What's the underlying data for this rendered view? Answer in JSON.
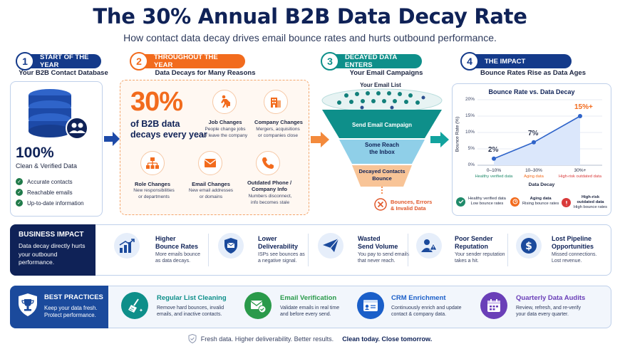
{
  "header": {
    "title": "The 30% Annual B2B Data Decay Rate",
    "subtitle": "How contact data decay drives email bounce rates and hurts outbound performance."
  },
  "steps": [
    {
      "num": "1",
      "label": "START OF THE YEAR",
      "sub": "Your B2B Contact Database",
      "color": "#143a8a"
    },
    {
      "num": "2",
      "label": "THROUGHOUT THE YEAR",
      "sub": "Data Decays for Many Reasons",
      "color": "#f26b1d"
    },
    {
      "num": "3",
      "label": "DECAYED DATA ENTERS",
      "sub": "Your Email Campaigns",
      "color": "#0e8f8a"
    },
    {
      "num": "4",
      "label": "THE IMPACT",
      "sub": "Bounce Rates Rise as Data Ages",
      "color": "#143a8a"
    }
  ],
  "database": {
    "big": "100%",
    "caption": "Clean & Verified Data",
    "checks": [
      "Accurate contacts",
      "Reachable emails",
      "Up-to-date information"
    ]
  },
  "decay": {
    "pct": "30%",
    "text1": "of B2B data",
    "text2": "decays every year",
    "reasons": [
      {
        "title": "Job Changes",
        "desc1": "People change jobs",
        "desc2": "or leave the company",
        "icon": "person-walking-icon"
      },
      {
        "title": "Company Changes",
        "desc1": "Mergers, acquisitions",
        "desc2": "or companies close",
        "icon": "building-icon"
      },
      {
        "title": "Role Changes",
        "desc1": "New responsibilities",
        "desc2": "or departments",
        "icon": "org-chart-icon"
      },
      {
        "title": "Email Changes",
        "desc1": "New email addresses",
        "desc2": "or domains",
        "icon": "envelope-icon"
      },
      {
        "title": "Outdated Phone /",
        "title2": "Company Info",
        "desc1": "Numbers disconnect,",
        "desc2": "info becomes stale",
        "icon": "phone-icon"
      }
    ]
  },
  "funnel": {
    "list_label": "Your Email List",
    "stage1": "Send Email Campaign",
    "stage2a": "Some Reach",
    "stage2b": "the Inbox",
    "stage3a": "Decayed Contacts",
    "stage3b": "Bounce",
    "bounce1": "Bounces, Errors",
    "bounce2": "& Invalid Data"
  },
  "chart_data": {
    "type": "line",
    "title": "Bounce Rate vs. Data Decay",
    "xlabel": "Data Decay",
    "ylabel": "Bounce Rate (%)",
    "ylim": [
      0,
      20
    ],
    "yticks": [
      "0%",
      "5%",
      "10%",
      "15%",
      "20%"
    ],
    "categories": [
      "0–10%",
      "10–30%",
      "30%+"
    ],
    "category_subs": [
      "Healthy verified data",
      "Aging data",
      "High-risk outdated data"
    ],
    "values": [
      2,
      7,
      15
    ],
    "data_labels": [
      "2%",
      "7%",
      "15%+"
    ],
    "grid": true,
    "legend": [
      {
        "line1": "Healthy verified data",
        "line2": "Low bounce rates",
        "color": "#1f8a6a"
      },
      {
        "line1": "Aging data",
        "line2": "Rising bounce rates",
        "color": "#f26b1d"
      },
      {
        "line1": "High-risk",
        "line2": "outdated data",
        "line3": "High bounce rates",
        "color": "#d93a3a"
      }
    ]
  },
  "business_impact": {
    "head": "BUSINESS IMPACT",
    "desc": "Data decay directly hurts your outbound performance.",
    "items": [
      {
        "t1": "Higher",
        "t2": "Bounce Rates",
        "d1": "More emails bounce",
        "d2": "as data decays.",
        "icon": "bar-chart-icon"
      },
      {
        "t1": "Lower",
        "t2": "Deliverability",
        "d1": "ISPs see bounces as",
        "d2": "a negative signal.",
        "icon": "shield-envelope-icon"
      },
      {
        "t1": "Wasted",
        "t2": "Send Volume",
        "d1": "You pay to send emails",
        "d2": "that never reach.",
        "icon": "paper-plane-icon"
      },
      {
        "t1": "Poor Sender",
        "t2": "Reputation",
        "d1": "Your sender reputation",
        "d2": "takes a hit.",
        "icon": "warning-user-icon"
      },
      {
        "t1": "Lost Pipeline",
        "t2": "Opportunities",
        "d1": "Missed connections.",
        "d2": "Lost revenue.",
        "icon": "dollar-icon"
      }
    ]
  },
  "best_practices": {
    "head": "BEST PRACTICES",
    "desc1": "Keep your data fresh.",
    "desc2": "Protect performance.",
    "items": [
      {
        "title": "Regular List Cleaning",
        "d1": "Remove hard bounces, invalid",
        "d2": "emails, and inactive contacts.",
        "color": "#0e8f8a",
        "icon": "broom-icon"
      },
      {
        "title": "Email Verification",
        "d1": "Validate emails in real time",
        "d2": "and before every send.",
        "color": "#2a9a4a",
        "icon": "email-check-icon"
      },
      {
        "title": "CRM Enrichment",
        "d1": "Continuously enrich and update",
        "d2": "contact & company data.",
        "color": "#1b5fc9",
        "icon": "crm-card-icon"
      },
      {
        "title": "Quarterly Data Audits",
        "d1": "Review, refresh, and re-verify",
        "d2": "your data every quarter.",
        "color": "#6a3fb8",
        "icon": "calendar-icon"
      }
    ]
  },
  "footer": {
    "text": "Fresh data. Higher deliverability. Better results.",
    "bold": "Clean today. Close tomorrow."
  }
}
